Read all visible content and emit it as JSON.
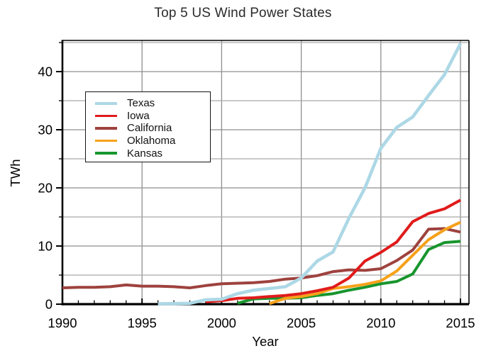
{
  "chart_data": {
    "type": "line",
    "title": "Top 5 US Wind Power States",
    "xlabel": "Year",
    "ylabel": "TWh",
    "xlim": [
      1989.8,
      2015.5
    ],
    "ylim": [
      0,
      45.4
    ],
    "x_major_ticks": [
      1990,
      1995,
      2000,
      2005,
      2010,
      2015
    ],
    "y_major_ticks": [
      0,
      10,
      20,
      30,
      40
    ],
    "grid": "gridlines every 5 units on both axes",
    "legend_position": "upper-left-inside",
    "years": [
      1990,
      1991,
      1992,
      1993,
      1994,
      1995,
      1996,
      1997,
      1998,
      1999,
      2000,
      2001,
      2002,
      2003,
      2004,
      2005,
      2006,
      2007,
      2008,
      2009,
      2010,
      2011,
      2012,
      2013,
      2014,
      2015
    ],
    "series": [
      {
        "name": "Texas",
        "color": "#add8e6",
        "values": [
          null,
          null,
          null,
          null,
          null,
          null,
          0.05,
          0.1,
          0.15,
          0.75,
          0.85,
          1.8,
          2.4,
          2.7,
          3.0,
          4.5,
          7.4,
          9.0,
          14.8,
          20.0,
          26.8,
          30.4,
          32.2,
          35.9,
          39.5,
          44.8
        ]
      },
      {
        "name": "Iowa",
        "color": "#e01b1b",
        "values": [
          null,
          null,
          null,
          null,
          null,
          null,
          null,
          null,
          null,
          0.4,
          0.6,
          1.0,
          1.1,
          1.3,
          1.5,
          1.8,
          2.3,
          2.9,
          4.5,
          7.4,
          8.9,
          10.7,
          14.2,
          15.6,
          16.4,
          17.9
        ]
      },
      {
        "name": "California",
        "color": "#9e423e",
        "values": [
          2.8,
          2.9,
          2.9,
          3.0,
          3.3,
          3.1,
          3.1,
          3.0,
          2.8,
          3.2,
          3.5,
          3.6,
          3.7,
          3.9,
          4.3,
          4.5,
          4.9,
          5.6,
          5.9,
          5.8,
          6.1,
          7.5,
          9.3,
          12.9,
          13.0,
          12.4
        ]
      },
      {
        "name": "Oklahoma",
        "color": "#f6a11a",
        "values": [
          null,
          null,
          null,
          null,
          null,
          null,
          null,
          null,
          null,
          null,
          null,
          null,
          null,
          0.1,
          1.0,
          1.3,
          1.8,
          2.7,
          3.0,
          3.4,
          4.0,
          5.7,
          8.4,
          11.1,
          12.8,
          14.1
        ]
      },
      {
        "name": "Kansas",
        "color": "#17952d",
        "values": [
          null,
          null,
          null,
          null,
          null,
          null,
          null,
          null,
          null,
          null,
          null,
          0.15,
          0.9,
          1.0,
          1.0,
          1.1,
          1.5,
          1.8,
          2.4,
          2.9,
          3.5,
          3.9,
          5.2,
          9.4,
          10.6,
          10.8
        ]
      }
    ],
    "draw_order": [
      "California",
      "Kansas",
      "Oklahoma",
      "Iowa",
      "Texas"
    ]
  }
}
